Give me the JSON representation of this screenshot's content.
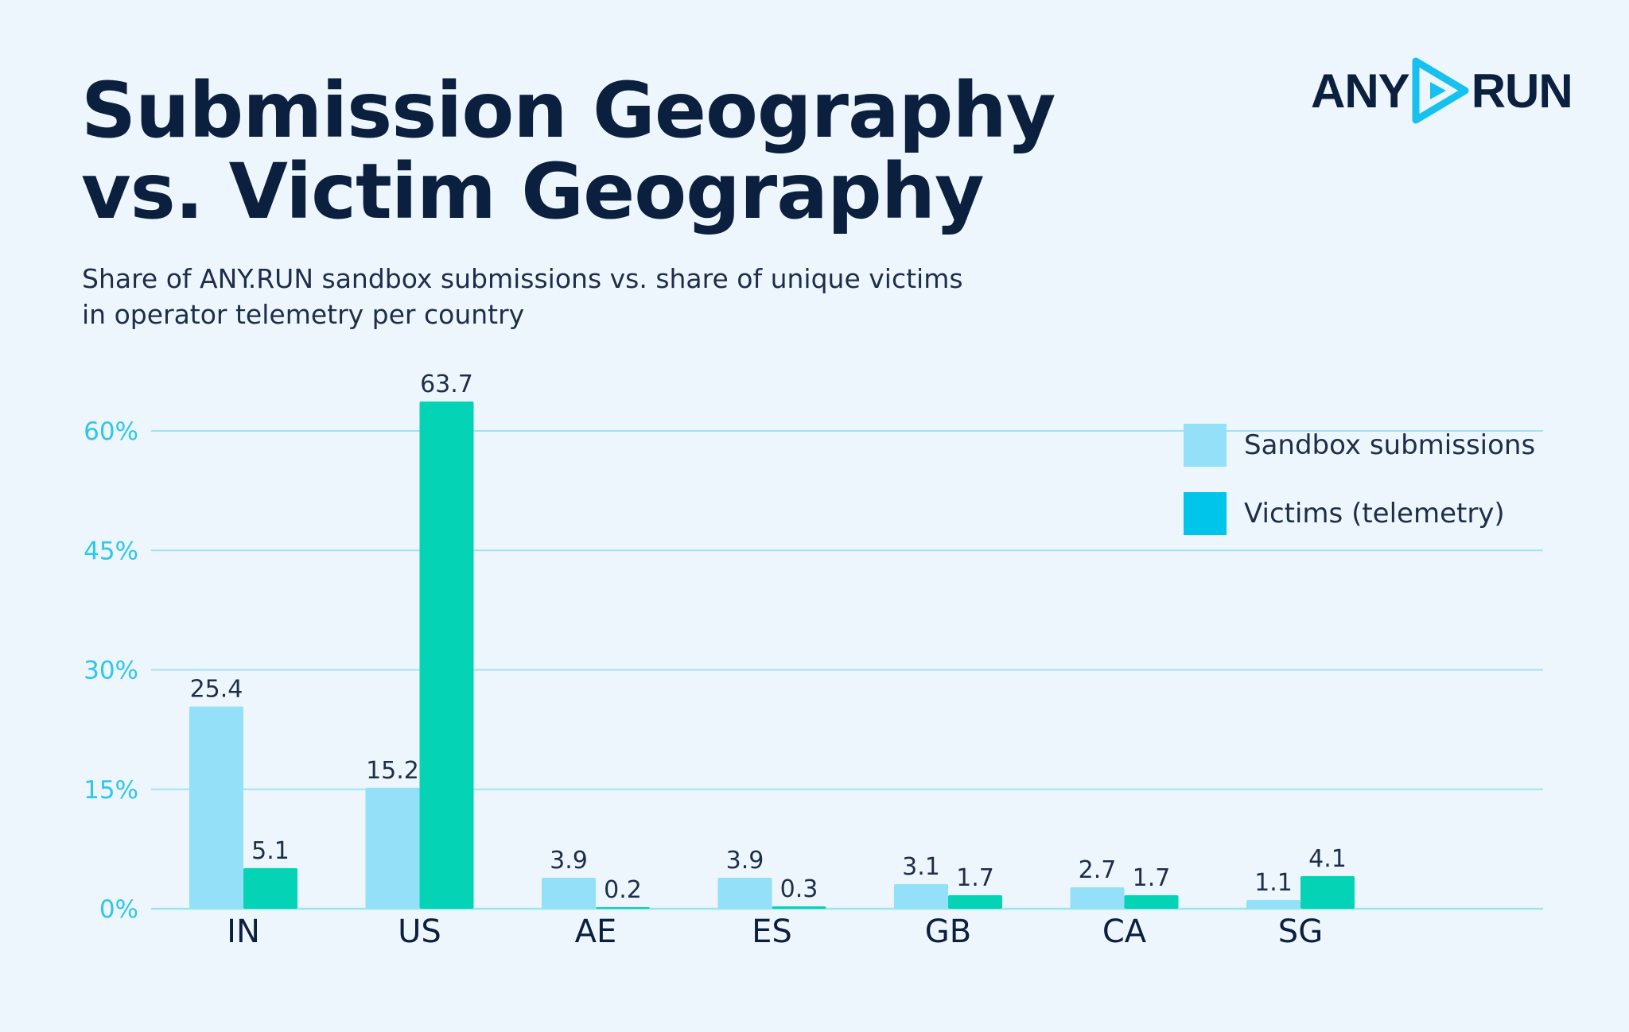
{
  "header": {
    "title_line1": "Submission Geography",
    "title_line2": "vs. Victim Geography",
    "subtitle_line1": "Share of ANY.RUN sandbox submissions vs. share of unique victims",
    "subtitle_line2": "in operator telemetry per country"
  },
  "logo": {
    "left_text": "ANY",
    "right_text": "RUN",
    "icon": "play-triangle-icon"
  },
  "legend": {
    "placement": "top-right",
    "items": [
      {
        "label": "Sandbox submissions",
        "color": "#93e0f8"
      },
      {
        "label": "Victims (telemetry)",
        "color": "#00c5eb"
      }
    ]
  },
  "chart_data": {
    "type": "bar",
    "title": "Submission Geography vs. Victim Geography",
    "categories": [
      "IN",
      "US",
      "AE",
      "ES",
      "GB",
      "CA",
      "SG"
    ],
    "series": [
      {
        "name": "Sandbox submissions",
        "values": [
          25.4,
          15.2,
          3.9,
          3.9,
          3.1,
          2.7,
          1.1
        ],
        "color": "#93e0f8"
      },
      {
        "name": "Victims (telemetry)",
        "values": [
          5.1,
          63.7,
          0.2,
          0.3,
          1.7,
          1.7,
          4.1
        ],
        "color": "#04d3b6"
      }
    ],
    "value_labels": [
      [
        "25.4",
        "15.2",
        "3.9",
        "3.9",
        "3.1",
        "2.7",
        "1.1"
      ],
      [
        "5.1",
        "63.7",
        "0.2",
        "0.3",
        "1.7",
        "1.7",
        "4.1"
      ]
    ],
    "yticks": [
      0,
      15,
      30,
      45,
      60
    ],
    "ytick_labels": [
      "0%",
      "15%",
      "30%",
      "45%",
      "60%"
    ],
    "ylim": [
      0,
      63.7
    ],
    "grid": true,
    "xlabel": "",
    "ylabel": ""
  }
}
